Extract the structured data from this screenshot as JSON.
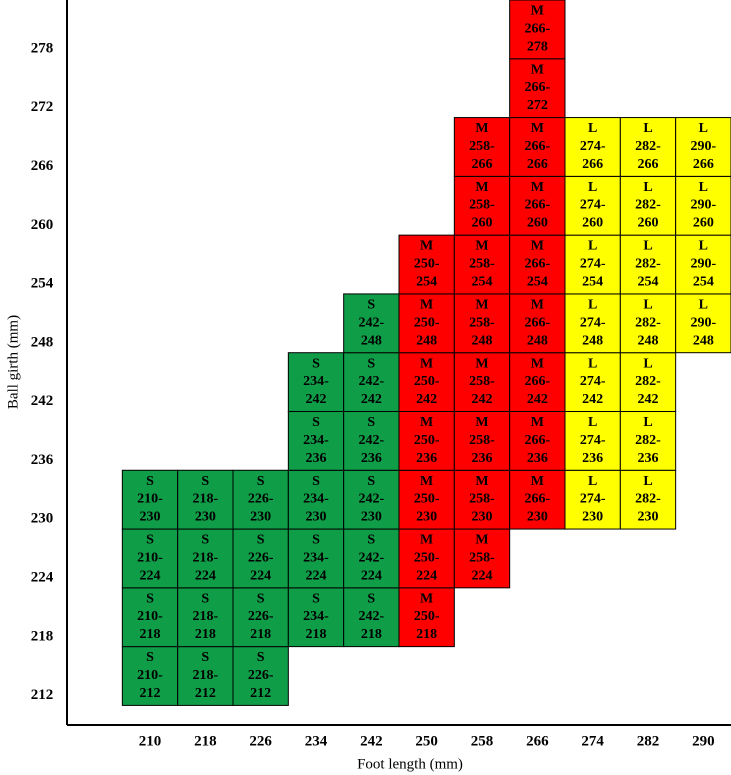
{
  "chart_data": {
    "type": "size-grid",
    "x_label": "Foot length (mm)",
    "y_label": "Ball girth (mm)",
    "xlim": [
      198,
      294
    ],
    "ylim": [
      209,
      283
    ],
    "xticks": [
      210,
      218,
      226,
      234,
      242,
      250,
      258,
      266,
      274,
      282,
      290
    ],
    "yticks": [
      212,
      218,
      224,
      230,
      236,
      242,
      248,
      254,
      260,
      266,
      272,
      278
    ],
    "cells": [
      {
        "x": 210,
        "y": 212,
        "size": "S",
        "range": "210-212",
        "color": "#0f9d48"
      },
      {
        "x": 210,
        "y": 218,
        "size": "S",
        "range": "210-218",
        "color": "#0f9d48"
      },
      {
        "x": 210,
        "y": 224,
        "size": "S",
        "range": "210-224",
        "color": "#0f9d48"
      },
      {
        "x": 210,
        "y": 230,
        "size": "S",
        "range": "210-230",
        "color": "#0f9d48"
      },
      {
        "x": 218,
        "y": 212,
        "size": "S",
        "range": "218-212",
        "color": "#0f9d48"
      },
      {
        "x": 218,
        "y": 218,
        "size": "S",
        "range": "218-218",
        "color": "#0f9d48"
      },
      {
        "x": 218,
        "y": 224,
        "size": "S",
        "range": "218-224",
        "color": "#0f9d48"
      },
      {
        "x": 218,
        "y": 230,
        "size": "S",
        "range": "218-230",
        "color": "#0f9d48"
      },
      {
        "x": 226,
        "y": 212,
        "size": "S",
        "range": "226-212",
        "color": "#0f9d48"
      },
      {
        "x": 226,
        "y": 218,
        "size": "S",
        "range": "226-218",
        "color": "#0f9d48"
      },
      {
        "x": 226,
        "y": 224,
        "size": "S",
        "range": "226-224",
        "color": "#0f9d48"
      },
      {
        "x": 226,
        "y": 230,
        "size": "S",
        "range": "226-230",
        "color": "#0f9d48"
      },
      {
        "x": 234,
        "y": 218,
        "size": "S",
        "range": "234-218",
        "color": "#0f9d48"
      },
      {
        "x": 234,
        "y": 224,
        "size": "S",
        "range": "234-224",
        "color": "#0f9d48"
      },
      {
        "x": 234,
        "y": 230,
        "size": "S",
        "range": "234-230",
        "color": "#0f9d48"
      },
      {
        "x": 234,
        "y": 236,
        "size": "S",
        "range": "234-236",
        "color": "#0f9d48"
      },
      {
        "x": 234,
        "y": 242,
        "size": "S",
        "range": "234-242",
        "color": "#0f9d48"
      },
      {
        "x": 242,
        "y": 218,
        "size": "S",
        "range": "242-218",
        "color": "#0f9d48"
      },
      {
        "x": 242,
        "y": 224,
        "size": "S",
        "range": "242-224",
        "color": "#0f9d48"
      },
      {
        "x": 242,
        "y": 230,
        "size": "S",
        "range": "242-230",
        "color": "#0f9d48"
      },
      {
        "x": 242,
        "y": 236,
        "size": "S",
        "range": "242-236",
        "color": "#0f9d48"
      },
      {
        "x": 242,
        "y": 242,
        "size": "S",
        "range": "242-242",
        "color": "#0f9d48"
      },
      {
        "x": 242,
        "y": 248,
        "size": "S",
        "range": "242-248",
        "color": "#0f9d48"
      },
      {
        "x": 250,
        "y": 218,
        "size": "M",
        "range": "250-218",
        "color": "#ff0000"
      },
      {
        "x": 250,
        "y": 224,
        "size": "M",
        "range": "250-224",
        "color": "#ff0000"
      },
      {
        "x": 250,
        "y": 230,
        "size": "M",
        "range": "250-230",
        "color": "#ff0000"
      },
      {
        "x": 250,
        "y": 236,
        "size": "M",
        "range": "250-236",
        "color": "#ff0000"
      },
      {
        "x": 250,
        "y": 242,
        "size": "M",
        "range": "250-242",
        "color": "#ff0000"
      },
      {
        "x": 250,
        "y": 248,
        "size": "M",
        "range": "250-248",
        "color": "#ff0000"
      },
      {
        "x": 250,
        "y": 254,
        "size": "M",
        "range": "250-254",
        "color": "#ff0000"
      },
      {
        "x": 258,
        "y": 224,
        "size": "M",
        "range": "258-224",
        "color": "#ff0000"
      },
      {
        "x": 258,
        "y": 230,
        "size": "M",
        "range": "258-230",
        "color": "#ff0000"
      },
      {
        "x": 258,
        "y": 236,
        "size": "M",
        "range": "258-236",
        "color": "#ff0000"
      },
      {
        "x": 258,
        "y": 242,
        "size": "M",
        "range": "258-242",
        "color": "#ff0000"
      },
      {
        "x": 258,
        "y": 248,
        "size": "M",
        "range": "258-248",
        "color": "#ff0000"
      },
      {
        "x": 258,
        "y": 254,
        "size": "M",
        "range": "258-254",
        "color": "#ff0000"
      },
      {
        "x": 258,
        "y": 260,
        "size": "M",
        "range": "258-260",
        "color": "#ff0000"
      },
      {
        "x": 258,
        "y": 266,
        "size": "M",
        "range": "258-266",
        "color": "#ff0000"
      },
      {
        "x": 266,
        "y": 230,
        "size": "M",
        "range": "266-230",
        "color": "#ff0000"
      },
      {
        "x": 266,
        "y": 236,
        "size": "M",
        "range": "266-236",
        "color": "#ff0000"
      },
      {
        "x": 266,
        "y": 242,
        "size": "M",
        "range": "266-242",
        "color": "#ff0000"
      },
      {
        "x": 266,
        "y": 248,
        "size": "M",
        "range": "266-248",
        "color": "#ff0000"
      },
      {
        "x": 266,
        "y": 254,
        "size": "M",
        "range": "266-254",
        "color": "#ff0000"
      },
      {
        "x": 266,
        "y": 260,
        "size": "M",
        "range": "266-260",
        "color": "#ff0000"
      },
      {
        "x": 266,
        "y": 266,
        "size": "M",
        "range": "266-266",
        "color": "#ff0000"
      },
      {
        "x": 266,
        "y": 272,
        "size": "M",
        "range": "266-272",
        "color": "#ff0000"
      },
      {
        "x": 266,
        "y": 278,
        "size": "M",
        "range": "266-278",
        "color": "#ff0000"
      },
      {
        "x": 274,
        "y": 230,
        "size": "L",
        "range": "274-230",
        "color": "#ffff00"
      },
      {
        "x": 274,
        "y": 236,
        "size": "L",
        "range": "274-236",
        "color": "#ffff00"
      },
      {
        "x": 274,
        "y": 242,
        "size": "L",
        "range": "274-242",
        "color": "#ffff00"
      },
      {
        "x": 274,
        "y": 248,
        "size": "L",
        "range": "274-248",
        "color": "#ffff00"
      },
      {
        "x": 274,
        "y": 254,
        "size": "L",
        "range": "274-254",
        "color": "#ffff00"
      },
      {
        "x": 274,
        "y": 260,
        "size": "L",
        "range": "274-260",
        "color": "#ffff00"
      },
      {
        "x": 274,
        "y": 266,
        "size": "L",
        "range": "274-266",
        "color": "#ffff00"
      },
      {
        "x": 282,
        "y": 230,
        "size": "L",
        "range": "282-230",
        "color": "#ffff00"
      },
      {
        "x": 282,
        "y": 236,
        "size": "L",
        "range": "282-236",
        "color": "#ffff00"
      },
      {
        "x": 282,
        "y": 242,
        "size": "L",
        "range": "282-242",
        "color": "#ffff00"
      },
      {
        "x": 282,
        "y": 248,
        "size": "L",
        "range": "282-248",
        "color": "#ffff00"
      },
      {
        "x": 282,
        "y": 254,
        "size": "L",
        "range": "282-254",
        "color": "#ffff00"
      },
      {
        "x": 282,
        "y": 260,
        "size": "L",
        "range": "282-260",
        "color": "#ffff00"
      },
      {
        "x": 282,
        "y": 266,
        "size": "L",
        "range": "282-266",
        "color": "#ffff00"
      },
      {
        "x": 290,
        "y": 248,
        "size": "L",
        "range": "290-248",
        "color": "#ffff00"
      },
      {
        "x": 290,
        "y": 254,
        "size": "L",
        "range": "290-254",
        "color": "#ffff00"
      },
      {
        "x": 290,
        "y": 260,
        "size": "L",
        "range": "290-260",
        "color": "#ffff00"
      },
      {
        "x": 290,
        "y": 266,
        "size": "L",
        "range": "290-266",
        "color": "#ffff00"
      }
    ]
  }
}
